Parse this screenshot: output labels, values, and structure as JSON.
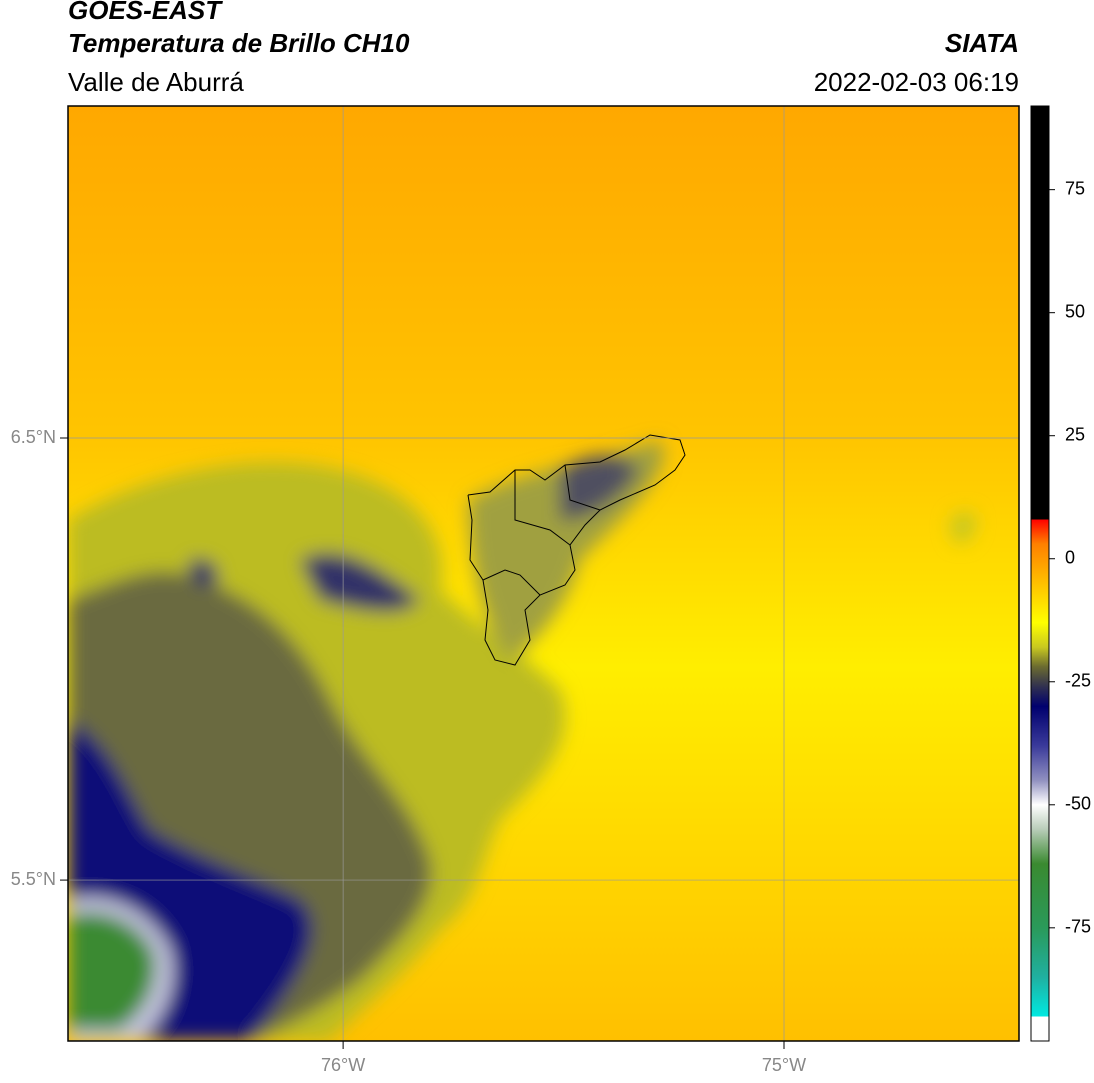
{
  "header": {
    "title": "GOES-EAST",
    "subtitle": "Temperatura de Brillo CH10",
    "region": "Valle de Aburrá",
    "source": "SIATA",
    "datetime": "2022-02-03 06:19"
  },
  "map": {
    "xlim": [
      -76.624,
      -74.467
    ],
    "ylim": [
      5.136,
      7.251
    ],
    "xticks": [
      {
        "value": -76,
        "label": "76°W"
      },
      {
        "value": -75,
        "label": "75°W"
      }
    ],
    "yticks": [
      {
        "value": 6.5,
        "label": "6.5°N"
      },
      {
        "value": 5.5,
        "label": "5.5°N"
      }
    ],
    "grid": true
  },
  "colorbar": {
    "lim": [
      -98,
      92
    ],
    "ticks": [
      75,
      50,
      25,
      0,
      -25,
      -50,
      -75
    ],
    "stops": [
      {
        "value": -98,
        "color": "#ffffff"
      },
      {
        "value": -93,
        "color": "#ffffff"
      },
      {
        "value": -93,
        "color": "#00e8e0"
      },
      {
        "value": -85,
        "color": "#20b0a0"
      },
      {
        "value": -75,
        "color": "#2a9a5a"
      },
      {
        "value": -62,
        "color": "#3a8a30"
      },
      {
        "value": -55,
        "color": "#b8ccb8"
      },
      {
        "value": -50,
        "color": "#ffffff"
      },
      {
        "value": -45,
        "color": "#9090c0"
      },
      {
        "value": -38,
        "color": "#3a3a9a"
      },
      {
        "value": -30,
        "color": "#00006e"
      },
      {
        "value": -26,
        "color": "#303050"
      },
      {
        "value": -22,
        "color": "#6a6a30"
      },
      {
        "value": -18,
        "color": "#c8c820"
      },
      {
        "value": -13,
        "color": "#ffff00"
      },
      {
        "value": -5,
        "color": "#ffc000"
      },
      {
        "value": 3,
        "color": "#ff8000"
      },
      {
        "value": 8,
        "color": "#ff0000"
      },
      {
        "value": 8,
        "color": "#000000"
      },
      {
        "value": 92,
        "color": "#000000"
      }
    ]
  }
}
